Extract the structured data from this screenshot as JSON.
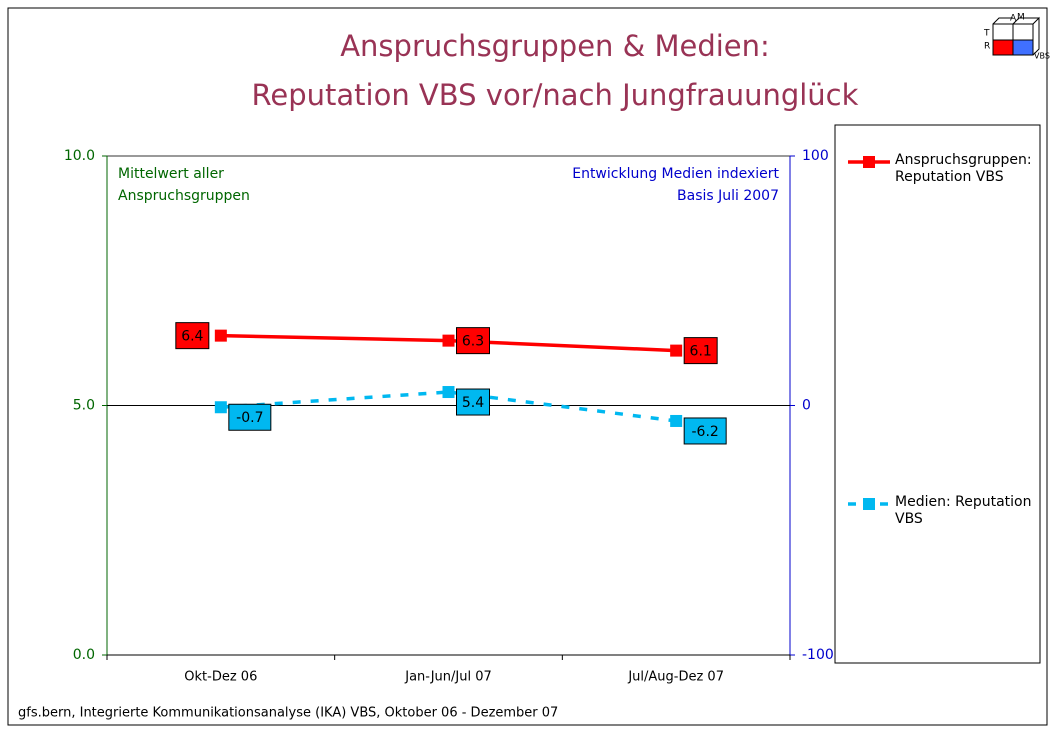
{
  "chart_data": {
    "type": "line",
    "title": [
      "Anspruchsgruppen & Medien:",
      "Reputation VBS vor/nach Jungfrauunglück"
    ],
    "categories": [
      "Okt-Dez 06",
      "Jan-Jun/Jul 07",
      "Jul/Aug-Dez 07"
    ],
    "series": [
      {
        "name": "Anspruchsgruppen: Reputation VBS",
        "color": "#ff0000",
        "values": [
          6.4,
          6.3,
          6.1
        ]
      },
      {
        "name": "Medien: Reputation VBS",
        "color": "#00b8f0",
        "axis": "y2",
        "dashed": true,
        "values": [
          -0.7,
          5.4,
          -6.2
        ]
      }
    ],
    "ylim": [
      0,
      10
    ],
    "yticks": [
      {
        "value": 0,
        "label": "0.0"
      },
      {
        "value": 5,
        "label": "5.0"
      },
      {
        "value": 10,
        "label": "10.0"
      }
    ],
    "y2lim": [
      -100,
      100
    ],
    "y2ticks": [
      -100,
      0,
      100
    ],
    "annotations": {
      "left": [
        "Mittelwert aller",
        "Anspruchsgruppen"
      ],
      "right": [
        "Entwicklung Medien indexiert",
        "Basis Juli 2007"
      ]
    },
    "legend": "right",
    "footer": "gfs.bern, Integrierte Kommunikationsanalyse (IKA) VBS, Oktober 06 - Dezember 07",
    "logo": {
      "letters": [
        "A",
        "M",
        "T",
        "R"
      ],
      "label": "VBS"
    }
  }
}
